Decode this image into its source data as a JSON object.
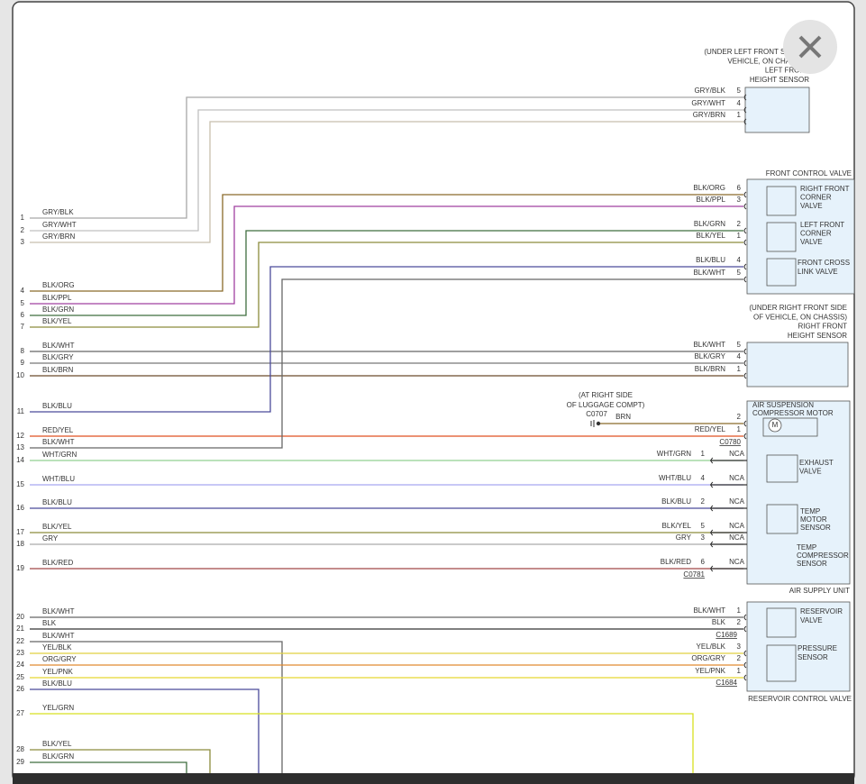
{
  "left_pins": [
    {
      "number": "1",
      "wire": "GRY/BLK"
    },
    {
      "number": "2",
      "wire": "GRY/WHT"
    },
    {
      "number": "3",
      "wire": "GRY/BRN"
    },
    {
      "number": "4",
      "wire": "BLK/ORG"
    },
    {
      "number": "5",
      "wire": "BLK/PPL"
    },
    {
      "number": "6",
      "wire": "BLK/GRN"
    },
    {
      "number": "7",
      "wire": "BLK/YEL"
    },
    {
      "number": "8",
      "wire": "BLK/WHT"
    },
    {
      "number": "9",
      "wire": "BLK/GRY"
    },
    {
      "number": "10",
      "wire": "BLK/BRN"
    },
    {
      "number": "11",
      "wire": "BLK/BLU"
    },
    {
      "number": "12",
      "wire": "RED/YEL"
    },
    {
      "number": "13",
      "wire": "BLK/WHT"
    },
    {
      "number": "14",
      "wire": "WHT/GRN"
    },
    {
      "number": "15",
      "wire": "WHT/BLU"
    },
    {
      "number": "16",
      "wire": "BLK/BLU"
    },
    {
      "number": "17",
      "wire": "BLK/YEL"
    },
    {
      "number": "18",
      "wire": "GRY"
    },
    {
      "number": "19",
      "wire": "BLK/RED"
    },
    {
      "number": "20",
      "wire": "BLK/WHT"
    },
    {
      "number": "21",
      "wire": "BLK"
    },
    {
      "number": "22",
      "wire": "BLK/WHT"
    },
    {
      "number": "23",
      "wire": "YEL/BLK"
    },
    {
      "number": "24",
      "wire": "ORG/GRY"
    },
    {
      "number": "25",
      "wire": "YEL/PNK"
    },
    {
      "number": "26",
      "wire": "BLK/BLU"
    },
    {
      "number": "27",
      "wire": "YEL/GRN"
    },
    {
      "number": "28",
      "wire": "BLK/YEL"
    },
    {
      "number": "29",
      "wire": "BLK/GRN"
    }
  ],
  "right_pins": [
    {
      "wire": "GRY/BLK",
      "number": "5"
    },
    {
      "wire": "GRY/WHT",
      "number": "4"
    },
    {
      "wire": "GRY/BRN",
      "number": "1"
    },
    {
      "wire": "BLK/ORG",
      "number": "6"
    },
    {
      "wire": "BLK/PPL",
      "number": "3"
    },
    {
      "wire": "BLK/GRN",
      "number": "2"
    },
    {
      "wire": "BLK/YEL",
      "number": "1"
    },
    {
      "wire": "BLK/BLU",
      "number": "4"
    },
    {
      "wire": "BLK/WHT",
      "number": "5"
    },
    {
      "wire": "BLK/WHT",
      "number": "5"
    },
    {
      "wire": "BLK/GRY",
      "number": "4"
    },
    {
      "wire": "BLK/BRN",
      "number": "1"
    },
    {
      "wire": "BRN",
      "number": "2"
    },
    {
      "wire": "RED/YEL",
      "number": "1"
    },
    {
      "wire": "WHT/GRN",
      "number": "1",
      "nca": "NCA"
    },
    {
      "wire": "WHT/BLU",
      "number": "4",
      "nca": "NCA"
    },
    {
      "wire": "BLK/BLU",
      "number": "2",
      "nca": "NCA"
    },
    {
      "wire": "BLK/YEL",
      "number": "5",
      "nca": "NCA"
    },
    {
      "wire": "GRY",
      "number": "3",
      "nca": "NCA"
    },
    {
      "wire": "BLK/RED",
      "number": "6",
      "nca": "NCA"
    },
    {
      "wire": "BLK/WHT",
      "number": "1"
    },
    {
      "wire": "BLK",
      "number": "2"
    },
    {
      "wire": "YEL/BLK",
      "number": "3"
    },
    {
      "wire": "ORG/GRY",
      "number": "2"
    },
    {
      "wire": "YEL/PNK",
      "number": "1"
    }
  ],
  "connectors": [
    "C0780",
    "C0781",
    "C1689",
    "C1684"
  ],
  "ground": {
    "note": [
      "(AT RIGHT SIDE",
      "OF LUGGAGE COMPT)"
    ],
    "id": "C0707"
  },
  "motor_symbol": "M",
  "components": [
    {
      "lines": [
        "(UNDER LEFT FRONT SIDE OF",
        "VEHICLE, ON CHASSIS)",
        "LEFT FRONT",
        "HEIGHT SENSOR"
      ]
    },
    {
      "lines": [
        "FRONT CONTROL VALVE"
      ]
    },
    {
      "lines": [
        "RIGHT FRONT",
        "CORNER",
        "VALVE"
      ]
    },
    {
      "lines": [
        "LEFT FRONT",
        "CORNER",
        "VALVE"
      ]
    },
    {
      "lines": [
        "FRONT CROSS",
        "LINK VALVE"
      ]
    },
    {
      "lines": [
        "(UNDER RIGHT FRONT SIDE",
        "OF VEHICLE, ON CHASSIS)",
        "RIGHT FRONT",
        "HEIGHT SENSOR"
      ]
    },
    {
      "lines": [
        "AIR SUSPENSION",
        "COMPRESSOR MOTOR"
      ]
    },
    {
      "lines": [
        "EXHAUST",
        "VALVE"
      ]
    },
    {
      "lines": [
        "TEMP",
        "MOTOR",
        "SENSOR"
      ]
    },
    {
      "lines": [
        "TEMP",
        "COMPRESSOR",
        "SENSOR"
      ]
    },
    {
      "lines": [
        "AIR SUPPLY UNIT"
      ]
    },
    {
      "lines": [
        "RESERVOIR",
        "VALVE"
      ]
    },
    {
      "lines": [
        "PRESSURE",
        "SENSOR"
      ]
    },
    {
      "lines": [
        "RESERVOIR CONTROL VALVE"
      ]
    }
  ]
}
